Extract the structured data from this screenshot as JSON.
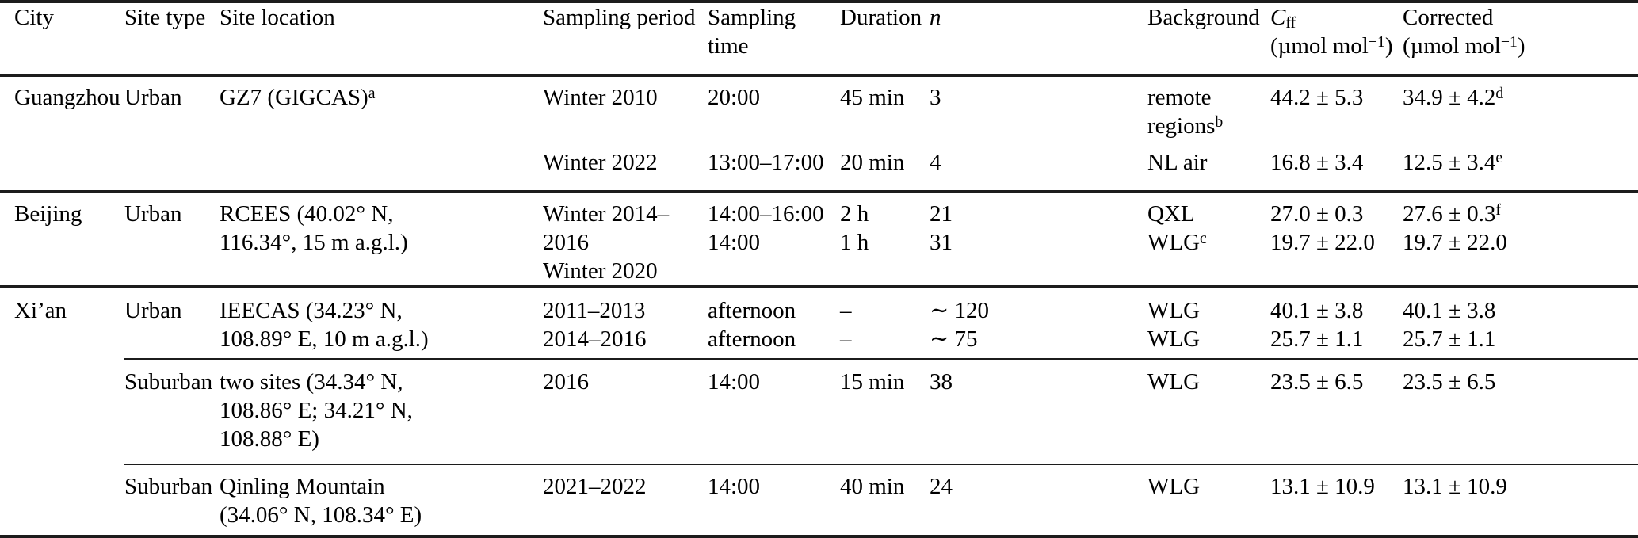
{
  "table": {
    "columns": [
      {
        "id": "city",
        "label": "City"
      },
      {
        "id": "site_type",
        "label": "Site type"
      },
      {
        "id": "site_location",
        "label": "Site location"
      },
      {
        "id": "sampling_period",
        "label": "Sampling period"
      },
      {
        "id": "sampling_time",
        "label": "Sampling time"
      },
      {
        "id": "duration",
        "label": "Duration"
      },
      {
        "id": "n",
        "label": "*n*"
      },
      {
        "id": "background",
        "label": "Background"
      },
      {
        "id": "cff",
        "label": "*C*~ff~\n(µmol mol^−1^)"
      },
      {
        "id": "corrected",
        "label": "Corrected\n(µmol mol^−1^)"
      }
    ],
    "groups": [
      {
        "city": "Guangzhou",
        "rows": [
          {
            "cells": [
              "Guangzhou",
              "Urban",
              "GZ7 (GIGCAS)^a^",
              "Winter 2010",
              "20:00",
              "45 min",
              "3",
              "remote\nregions^b^",
              "44.2 ± 5.3",
              "34.9 ± 4.2^d^"
            ]
          },
          {
            "cells": [
              "",
              "",
              "",
              "Winter 2022",
              "13:00–17:00",
              "20 min",
              "4",
              "NL air",
              "16.8 ± 3.4",
              "12.5 ± 3.4^e^"
            ]
          }
        ]
      },
      {
        "city": "Beijing",
        "rows": [
          {
            "cells": [
              "Beijing",
              "Urban",
              "RCEES (40.02° N,\n116.34°, 15 m a.g.l.)",
              "Winter 2014–2016\nWinter 2020",
              "14:00–16:00\n14:00",
              "2 h\n1 h",
              "21\n31",
              "QXL\nWLG^c^",
              "27.0 ± 0.3\n19.7 ± 22.0",
              "27.6 ± 0.3^f^\n19.7 ± 22.0"
            ]
          }
        ]
      },
      {
        "city": "Xi’an",
        "rows": [
          {
            "cells": [
              "Xi’an",
              "Urban",
              "IEECAS (34.23° N,\n108.89° E, 10 m a.g.l.)",
              "2011–2013\n2014–2016",
              "afternoon\nafternoon",
              "–\n–",
              "∼ 120\n∼ 75",
              "WLG\nWLG",
              "40.1 ± 3.8\n25.7 ± 1.1",
              "40.1 ± 3.8\n25.7 ± 1.1"
            ]
          },
          {
            "cells": [
              "",
              "Suburban",
              "two sites (34.34° N,\n108.86° E; 34.21° N,\n108.88° E)",
              "2016",
              "14:00",
              "15 min",
              "38",
              "WLG",
              "23.5 ± 6.5",
              "23.5 ± 6.5"
            ]
          },
          {
            "cells": [
              "",
              "Suburban",
              "Qinling Mountain\n(34.06° N, 108.34° E)",
              "2021–2022",
              "14:00",
              "40 min",
              "24",
              "WLG",
              "13.1 ± 10.9",
              "13.1 ± 10.9"
            ]
          }
        ]
      }
    ]
  }
}
